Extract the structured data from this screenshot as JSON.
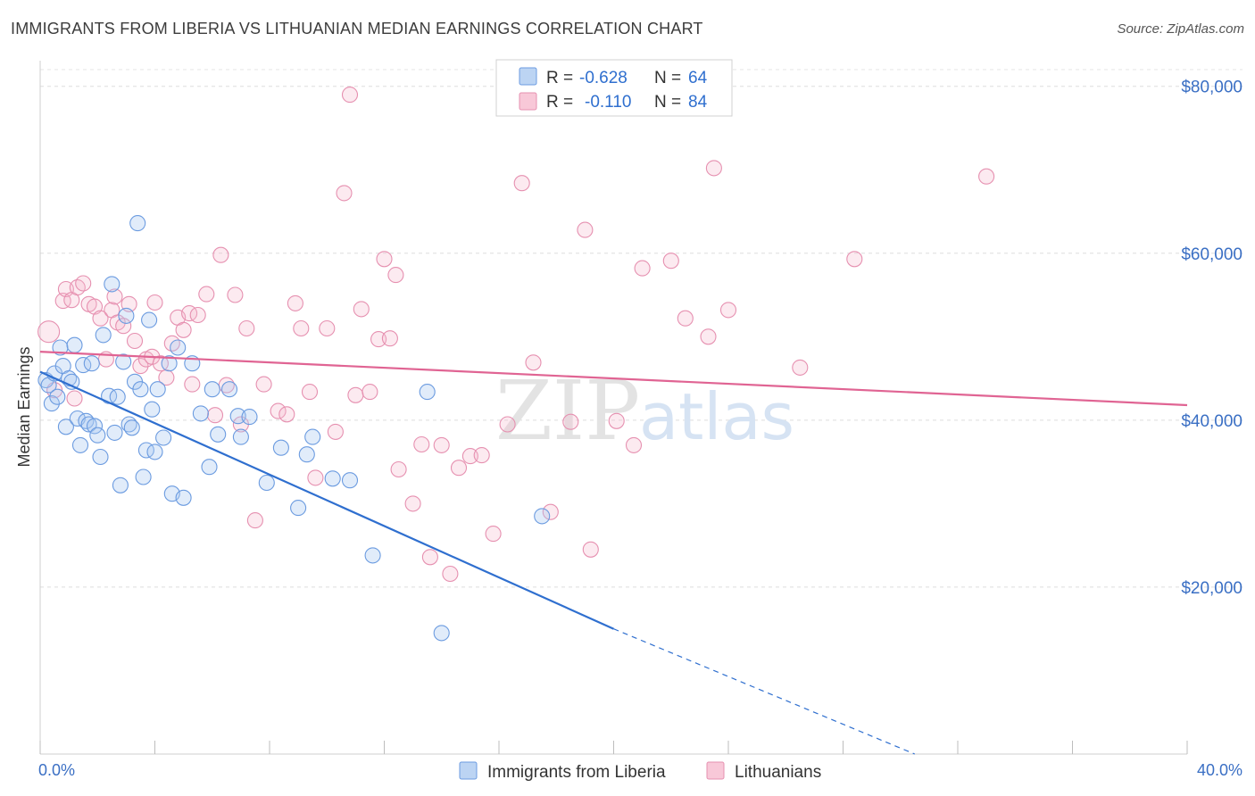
{
  "title": "IMMIGRANTS FROM LIBERIA VS LITHUANIAN MEDIAN EARNINGS CORRELATION CHART",
  "source": "Source: ZipAtlas.com",
  "watermark": {
    "zip": "ZIP",
    "atlas": "atlas"
  },
  "legend": {
    "rows": [
      {
        "r_label": "R =",
        "r_value": "-0.628",
        "n_label": "N =",
        "n_value": "64"
      },
      {
        "r_label": "R =",
        "r_value": "-0.110",
        "n_label": "N =",
        "n_value": "84"
      }
    ]
  },
  "bottom_legend": [
    "Immigrants from Liberia",
    "Lithuanians"
  ],
  "chart_data": {
    "type": "scatter",
    "title": "IMMIGRANTS FROM LIBERIA VS LITHUANIAN MEDIAN EARNINGS CORRELATION CHART",
    "xlabel": "",
    "ylabel": "Median Earnings",
    "xlim": [
      0,
      40
    ],
    "ylim": [
      0,
      82000
    ],
    "x_tick_labels": [
      "0.0%",
      "40.0%"
    ],
    "y_ticks": [
      20000,
      40000,
      60000,
      80000
    ],
    "y_tick_labels": [
      "$20,000",
      "$40,000",
      "$60,000",
      "$80,000"
    ],
    "grid": true,
    "legend_position": "top-center",
    "colors": {
      "liberia": "#4a86d8",
      "lithuanian": "#e27aa0"
    },
    "series": [
      {
        "name": "Immigrants from Liberia",
        "color": "#4a86d8",
        "r": -0.628,
        "n": 64,
        "trend": {
          "x0": 0,
          "y0": 45800,
          "x1": 20,
          "y1": 15000,
          "dashed_to_x": 30.5,
          "dashed_to_y": 0
        },
        "points": [
          [
            0.2,
            44800
          ],
          [
            0.3,
            44200
          ],
          [
            0.4,
            42000
          ],
          [
            0.5,
            45600
          ],
          [
            0.6,
            42800
          ],
          [
            0.7,
            48700
          ],
          [
            0.8,
            46500
          ],
          [
            0.9,
            39200
          ],
          [
            1.0,
            45000
          ],
          [
            1.1,
            44600
          ],
          [
            1.2,
            49000
          ],
          [
            1.3,
            40200
          ],
          [
            1.4,
            37000
          ],
          [
            1.5,
            46600
          ],
          [
            1.6,
            39900
          ],
          [
            1.7,
            39500
          ],
          [
            1.8,
            46800
          ],
          [
            1.9,
            39300
          ],
          [
            2.0,
            38200
          ],
          [
            2.1,
            35600
          ],
          [
            2.2,
            50200
          ],
          [
            2.4,
            42900
          ],
          [
            2.5,
            56300
          ],
          [
            2.6,
            38500
          ],
          [
            2.7,
            42800
          ],
          [
            2.8,
            32200
          ],
          [
            2.9,
            47000
          ],
          [
            3.0,
            52500
          ],
          [
            3.1,
            39500
          ],
          [
            3.2,
            39100
          ],
          [
            3.3,
            44600
          ],
          [
            3.4,
            63600
          ],
          [
            3.5,
            43700
          ],
          [
            3.6,
            33200
          ],
          [
            3.7,
            36400
          ],
          [
            3.8,
            52000
          ],
          [
            3.9,
            41300
          ],
          [
            4.0,
            36200
          ],
          [
            4.1,
            43700
          ],
          [
            4.3,
            37900
          ],
          [
            4.5,
            46800
          ],
          [
            4.6,
            31200
          ],
          [
            4.8,
            48700
          ],
          [
            5.0,
            30700
          ],
          [
            5.3,
            46800
          ],
          [
            5.6,
            40800
          ],
          [
            5.9,
            34400
          ],
          [
            6.0,
            43700
          ],
          [
            6.2,
            38300
          ],
          [
            6.6,
            43700
          ],
          [
            6.9,
            40500
          ],
          [
            7.0,
            38000
          ],
          [
            7.3,
            40400
          ],
          [
            7.9,
            32500
          ],
          [
            8.4,
            36700
          ],
          [
            9.0,
            29500
          ],
          [
            9.3,
            35900
          ],
          [
            9.5,
            38000
          ],
          [
            10.2,
            33000
          ],
          [
            10.8,
            32800
          ],
          [
            11.6,
            23800
          ],
          [
            13.5,
            43400
          ],
          [
            14.0,
            14500
          ],
          [
            17.5,
            28500
          ]
        ]
      },
      {
        "name": "Lithuanians",
        "color": "#e27aa0",
        "r": -0.11,
        "n": 84,
        "trend": {
          "x0": 0,
          "y0": 48200,
          "x1": 40,
          "y1": 41800
        },
        "points": [
          [
            0.3,
            50600
          ],
          [
            0.5,
            43600
          ],
          [
            0.8,
            54300
          ],
          [
            0.9,
            55700
          ],
          [
            1.1,
            54400
          ],
          [
            1.2,
            42600
          ],
          [
            1.3,
            55900
          ],
          [
            1.5,
            56400
          ],
          [
            1.7,
            53900
          ],
          [
            1.9,
            53600
          ],
          [
            2.1,
            52200
          ],
          [
            2.3,
            47300
          ],
          [
            2.5,
            53200
          ],
          [
            2.6,
            54800
          ],
          [
            2.7,
            51700
          ],
          [
            2.9,
            51300
          ],
          [
            3.1,
            53900
          ],
          [
            3.3,
            49500
          ],
          [
            3.5,
            46500
          ],
          [
            3.7,
            47300
          ],
          [
            3.9,
            47600
          ],
          [
            4.0,
            54100
          ],
          [
            4.2,
            46800
          ],
          [
            4.4,
            45100
          ],
          [
            4.6,
            49200
          ],
          [
            4.8,
            52300
          ],
          [
            5.0,
            50800
          ],
          [
            5.2,
            52800
          ],
          [
            5.3,
            44300
          ],
          [
            5.5,
            52600
          ],
          [
            5.8,
            55100
          ],
          [
            6.1,
            40600
          ],
          [
            6.3,
            59800
          ],
          [
            6.5,
            44200
          ],
          [
            6.8,
            55000
          ],
          [
            7.0,
            39500
          ],
          [
            7.2,
            51000
          ],
          [
            7.5,
            28000
          ],
          [
            7.8,
            44300
          ],
          [
            8.3,
            41100
          ],
          [
            8.6,
            40700
          ],
          [
            8.9,
            54000
          ],
          [
            9.1,
            51000
          ],
          [
            9.4,
            43400
          ],
          [
            9.6,
            33100
          ],
          [
            10.0,
            51000
          ],
          [
            10.3,
            38600
          ],
          [
            10.6,
            67200
          ],
          [
            10.8,
            79000
          ],
          [
            11.0,
            43000
          ],
          [
            11.2,
            53300
          ],
          [
            11.5,
            43400
          ],
          [
            11.8,
            49700
          ],
          [
            12.0,
            59300
          ],
          [
            12.2,
            49800
          ],
          [
            12.4,
            57400
          ],
          [
            12.5,
            34100
          ],
          [
            13.0,
            30000
          ],
          [
            13.3,
            37100
          ],
          [
            13.6,
            23600
          ],
          [
            14.0,
            37000
          ],
          [
            14.3,
            21600
          ],
          [
            14.6,
            34300
          ],
          [
            15.0,
            35700
          ],
          [
            15.4,
            35800
          ],
          [
            15.8,
            26400
          ],
          [
            16.3,
            39500
          ],
          [
            16.8,
            68400
          ],
          [
            17.2,
            46900
          ],
          [
            17.8,
            29000
          ],
          [
            18.5,
            39800
          ],
          [
            19.0,
            62800
          ],
          [
            19.2,
            24500
          ],
          [
            20.1,
            39900
          ],
          [
            20.7,
            37000
          ],
          [
            21.0,
            58200
          ],
          [
            22.0,
            59100
          ],
          [
            22.5,
            52200
          ],
          [
            23.3,
            50000
          ],
          [
            23.5,
            70200
          ],
          [
            24.0,
            53200
          ],
          [
            26.5,
            46300
          ],
          [
            28.4,
            59300
          ],
          [
            33.0,
            69200
          ]
        ]
      }
    ]
  }
}
